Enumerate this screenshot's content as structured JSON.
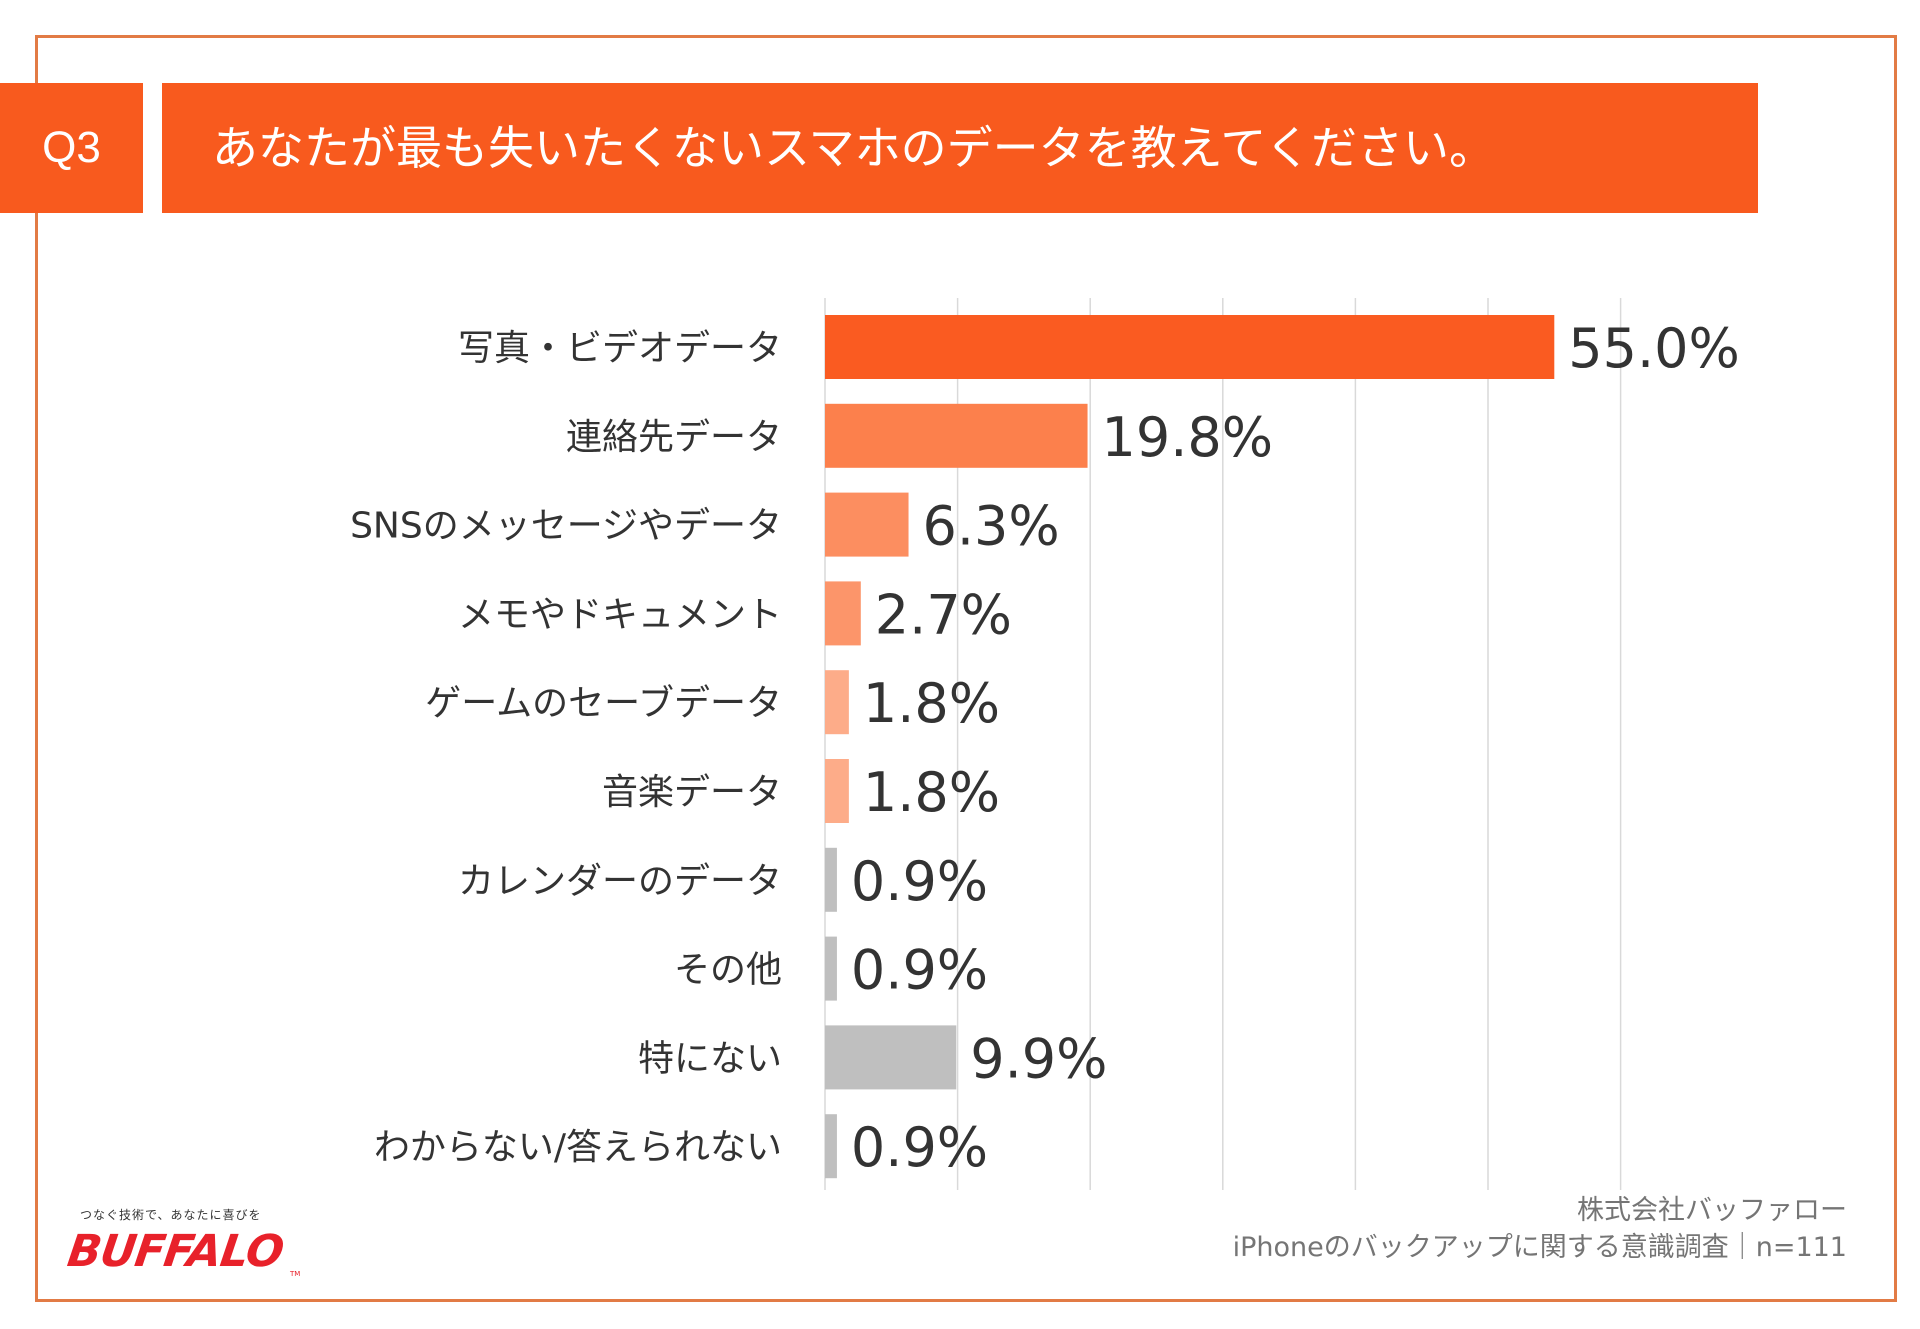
{
  "header": {
    "badge": "Q3",
    "title": "あなたが最も失いたくないスマホのデータを教えてください。"
  },
  "chart_data": {
    "type": "bar",
    "orientation": "horizontal",
    "title": "あなたが最も失いたくないスマホのデータを教えてください。",
    "categories": [
      "写真・ビデオデータ",
      "連絡先データ",
      "SNSのメッセージやデータ",
      "メモやドキュメント",
      "ゲームのセーブデータ",
      "音楽データ",
      "カレンダーのデータ",
      "その他",
      "特にない",
      "わからない/答えられない"
    ],
    "values": [
      55.0,
      19.8,
      6.3,
      2.7,
      1.8,
      1.8,
      0.9,
      0.9,
      9.9,
      0.9
    ],
    "data_labels": [
      "55.0%",
      "19.8%",
      "6.3%",
      "2.7%",
      "1.8%",
      "1.8%",
      "0.9%",
      "0.9%",
      "9.9%",
      "0.9%"
    ],
    "colors": [
      "#fa5b21",
      "#fc804c",
      "#fc8e60",
      "#fc956a",
      "#fdac89",
      "#fdac89",
      "#bfbfbf",
      "#bfbfbf",
      "#bfbfbf",
      "#bfbfbf"
    ],
    "xlim": [
      0,
      60
    ],
    "gridlines": [
      0,
      10,
      20,
      30,
      40,
      50,
      60
    ],
    "unit": "%",
    "xlabel": "",
    "ylabel": ""
  },
  "logo": {
    "tagline": "つなぐ技術で、あなたに喜びを",
    "name": "BUFFALO",
    "tm": "TM"
  },
  "footer": {
    "company": "株式会社バッファロー",
    "survey": "iPhoneのバックアップに関する意識調査｜n=111"
  },
  "colors": {
    "accent": "#f85a1e",
    "frame": "#e27b45",
    "grid": "#d9d9d9",
    "text": "#333333"
  }
}
